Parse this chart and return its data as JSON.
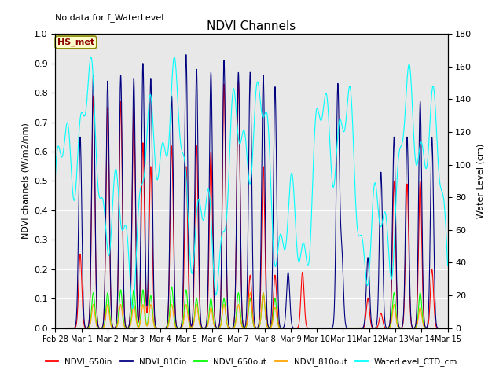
{
  "title": "NDVI Channels",
  "ylabel_left": "NDVI channels (W/m2/nm)",
  "ylabel_right": "Water Level (cm)",
  "ylim_left": [
    0.0,
    1.0
  ],
  "ylim_right": [
    0,
    180
  ],
  "annotation_text": "No data for f_WaterLevel",
  "hs_label": "HS_met",
  "legend_labels": [
    "NDVI_650in",
    "NDVI_810in",
    "NDVI_650out",
    "NDVI_810out",
    "WaterLevel_CTD_cm"
  ],
  "legend_colors": [
    "red",
    "blue",
    "#00cc00",
    "orange",
    "cyan"
  ],
  "bg_color": "#e8e8e8",
  "grid_color": "white",
  "xtick_labels": [
    "Feb 28",
    "Mar 1",
    "Mar 2",
    "Mar 3",
    "Mar 4",
    "Mar 5",
    "Mar 6",
    "Mar 7",
    "Mar 8",
    "Mar 9",
    "Mar 10",
    "Mar 11",
    "Mar 12",
    "Mar 13",
    "Mar 14",
    "Mar 15"
  ],
  "yticks_left": [
    0.0,
    0.1,
    0.2,
    0.3,
    0.4,
    0.5,
    0.6,
    0.7,
    0.8,
    0.9,
    1.0
  ],
  "yticks_right": [
    0,
    20,
    40,
    60,
    80,
    100,
    120,
    140,
    160,
    180
  ]
}
